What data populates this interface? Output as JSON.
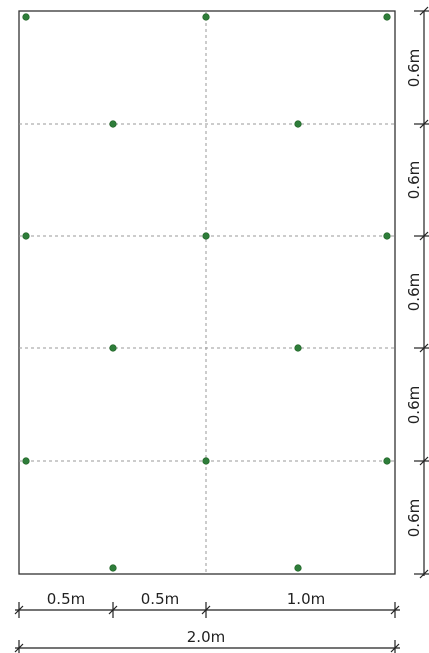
{
  "plan": {
    "vertical_dimensions": [
      "0.6m",
      "0.6m",
      "0.6m",
      "0.6m",
      "0.6m"
    ],
    "bottom_dimensions": [
      "0.5m",
      "0.5m",
      "1.0m"
    ],
    "total_width": "2.0m",
    "colors": {
      "outline": "#333333",
      "grid": "#9a9a9a",
      "dot": "#2e7d3a",
      "dot_stroke": "#1b5e20"
    }
  }
}
